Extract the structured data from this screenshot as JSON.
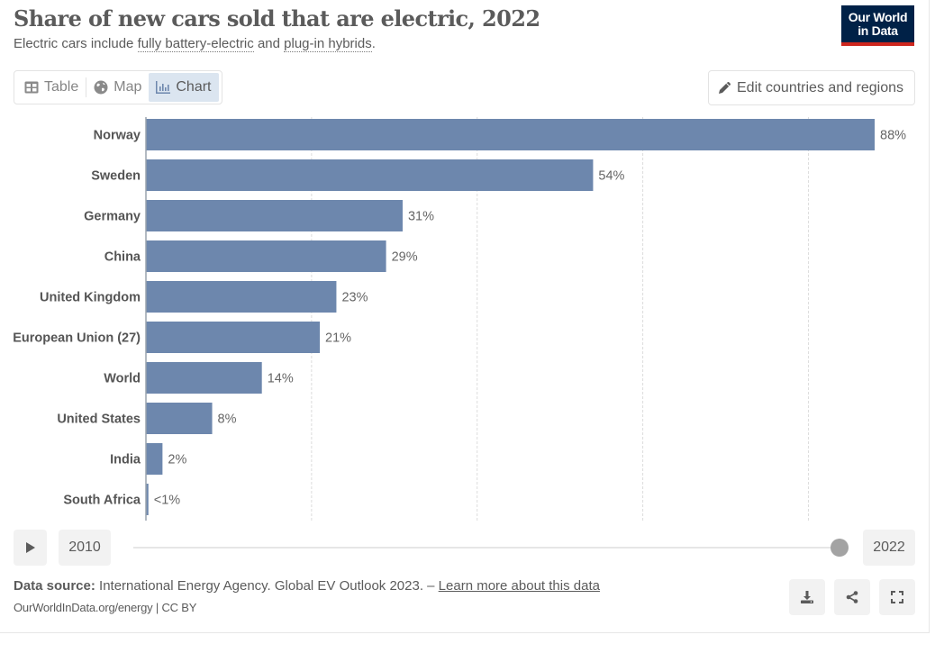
{
  "header": {
    "title": "Share of new cars sold that are electric, 2022",
    "subtitle_prefix": "Electric cars include ",
    "subtitle_link1": "fully battery-electric",
    "subtitle_mid": " and ",
    "subtitle_link2": "plug-in hybrids",
    "subtitle_suffix": ".",
    "logo_line1": "Our World",
    "logo_line2": "in Data",
    "logo_bg": "#002147",
    "logo_accent": "#ce261e"
  },
  "tabs": [
    {
      "label": "Table",
      "icon": "table-icon",
      "active": false
    },
    {
      "label": "Map",
      "icon": "globe-icon",
      "active": false
    },
    {
      "label": "Chart",
      "icon": "bar-chart-icon",
      "active": true
    }
  ],
  "edit_button": {
    "label": "Edit countries and regions",
    "icon": "pencil-icon"
  },
  "chart_data": {
    "type": "bar",
    "orientation": "horizontal",
    "title": "Share of new cars sold that are electric, 2022",
    "subtitle": "Electric cars include fully battery-electric and plug-in hybrids.",
    "xlabel": "",
    "ylabel": "",
    "categories": [
      "Norway",
      "Sweden",
      "Germany",
      "China",
      "United Kingdom",
      "European Union (27)",
      "World",
      "United States",
      "India",
      "South Africa"
    ],
    "values": [
      88,
      54,
      31,
      29,
      23,
      21,
      14,
      8,
      2,
      0.3
    ],
    "value_labels": [
      "88%",
      "54%",
      "31%",
      "29%",
      "23%",
      "21%",
      "14%",
      "8%",
      "2%",
      "<1%"
    ],
    "unit": "%",
    "xlim": [
      0,
      88
    ],
    "gridlines": [
      20,
      40,
      60,
      80
    ],
    "grid": true,
    "bar_color": "#6d87ad",
    "legend": "none"
  },
  "timeline": {
    "play_icon": "play-icon",
    "start_year": "2010",
    "end_year": "2022",
    "selected_year": "2022"
  },
  "footer": {
    "source_label": "Data source:",
    "source_text": " International Energy Agency. Global EV Outlook 2023. – ",
    "learn_more": "Learn more about this data",
    "license": "OurWorldInData.org/energy | CC BY"
  },
  "actions": [
    {
      "name": "download-button",
      "icon": "download-icon"
    },
    {
      "name": "share-button",
      "icon": "share-icon"
    },
    {
      "name": "fullscreen-button",
      "icon": "fullscreen-icon"
    }
  ]
}
